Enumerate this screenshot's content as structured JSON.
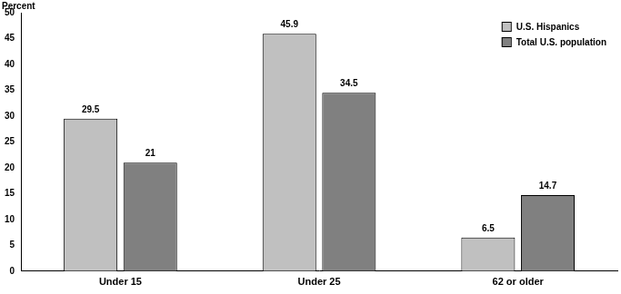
{
  "chart_data": {
    "type": "bar",
    "y_label": "Percent",
    "categories": [
      "Under 15",
      "Under 25",
      "62 or older"
    ],
    "series": [
      {
        "name": "U.S. Hispanics",
        "color": "#c0c0c0",
        "values": [
          29.5,
          45.9,
          6.5
        ]
      },
      {
        "name": "Total U.S. population",
        "color": "#808080",
        "values": [
          21,
          34.5,
          14.7
        ]
      }
    ],
    "ylim": [
      0,
      50
    ],
    "yticks": [
      0,
      5,
      10,
      15,
      20,
      25,
      30,
      35,
      40,
      45,
      50
    ],
    "grid": false,
    "legend": "upper right",
    "data_labels": true
  }
}
